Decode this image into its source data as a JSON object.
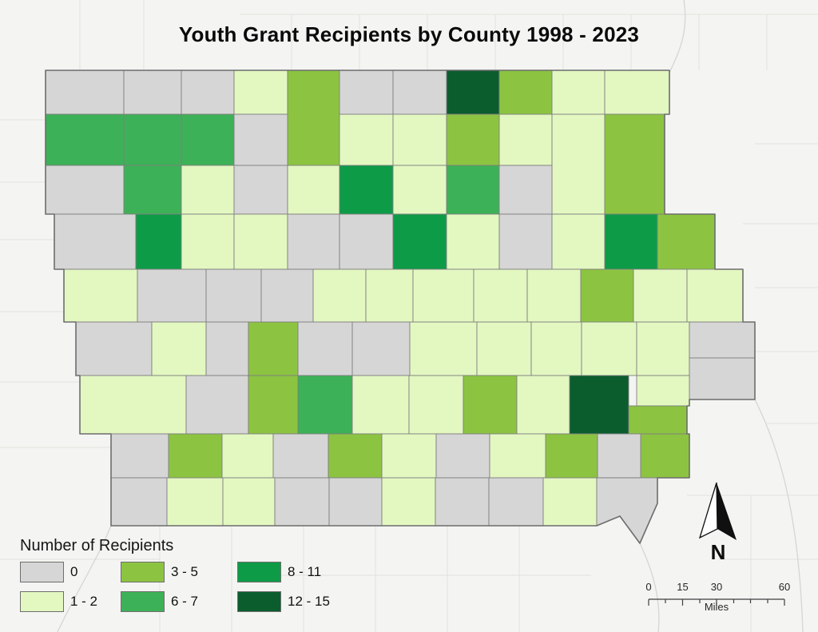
{
  "title": "Youth Grant Recipients by County 1998 - 2023",
  "legend": {
    "title": "Number of Recipients",
    "classes": [
      {
        "label": "0",
        "color": "#d6d6d6"
      },
      {
        "label": "1 - 2",
        "color": "#e3f7c1"
      },
      {
        "label": "3 - 5",
        "color": "#8cc441"
      },
      {
        "label": "6 - 7",
        "color": "#3db157"
      },
      {
        "label": "8 - 11",
        "color": "#0e9b48"
      },
      {
        "label": "12 - 15",
        "color": "#0b5d2e"
      }
    ]
  },
  "scale_bar": {
    "ticks": [
      "0",
      "15",
      "30",
      "60"
    ],
    "units_label": "Miles"
  },
  "north_arrow_label": "N",
  "map": {
    "colors": {
      "county_border": "#7f7f7f",
      "state_border": "#6d6d6d",
      "background": "#f4f4f2",
      "neighbor_line": "#e2e2df",
      "river": "#d5d5d2"
    },
    "counties": [
      {
        "n": "lyon",
        "c": 0,
        "r": [
          57,
          88,
          98,
          55
        ]
      },
      {
        "n": "osceola",
        "c": 0,
        "r": [
          155,
          88,
          72,
          55
        ]
      },
      {
        "n": "dickinson",
        "c": 0,
        "r": [
          227,
          88,
          66,
          55
        ]
      },
      {
        "n": "emmet",
        "c": 1,
        "r": [
          293,
          88,
          67,
          55
        ]
      },
      {
        "n": "kossuth",
        "c": 2,
        "r": [
          360,
          88,
          65,
          119
        ]
      },
      {
        "n": "winnebago",
        "c": 0,
        "r": [
          425,
          88,
          67,
          55
        ]
      },
      {
        "n": "worth",
        "c": 0,
        "r": [
          492,
          88,
          67,
          55
        ]
      },
      {
        "n": "mitchell",
        "c": 5,
        "r": [
          559,
          88,
          66,
          55
        ]
      },
      {
        "n": "howard",
        "c": 2,
        "r": [
          625,
          88,
          66,
          55
        ]
      },
      {
        "n": "winneshiek",
        "c": 1,
        "r": [
          691,
          88,
          66,
          55
        ]
      },
      {
        "n": "allamakee",
        "c": 1,
        "r": [
          757,
          88,
          81,
          55
        ]
      },
      {
        "n": "sioux",
        "c": 3,
        "r": [
          57,
          143,
          98,
          64
        ]
      },
      {
        "n": "obrien",
        "c": 3,
        "r": [
          155,
          143,
          72,
          64
        ]
      },
      {
        "n": "clay",
        "c": 3,
        "r": [
          227,
          143,
          66,
          64
        ]
      },
      {
        "n": "palo-alto",
        "c": 0,
        "r": [
          293,
          143,
          67,
          64
        ]
      },
      {
        "n": "hancock",
        "c": 1,
        "r": [
          425,
          143,
          67,
          64
        ]
      },
      {
        "n": "cerro-gordo",
        "c": 1,
        "r": [
          492,
          143,
          67,
          64
        ]
      },
      {
        "n": "floyd",
        "c": 2,
        "r": [
          559,
          143,
          66,
          64
        ]
      },
      {
        "n": "chickasaw",
        "c": 1,
        "r": [
          625,
          143,
          66,
          64
        ]
      },
      {
        "n": "fayette",
        "c": 1,
        "r": [
          691,
          143,
          66,
          125
        ]
      },
      {
        "n": "clayton",
        "c": 2,
        "r": [
          757,
          143,
          75,
          125
        ]
      },
      {
        "n": "plymouth",
        "c": 0,
        "r": [
          57,
          207,
          98,
          61
        ]
      },
      {
        "n": "cherokee",
        "c": 3,
        "r": [
          155,
          207,
          72,
          61
        ]
      },
      {
        "n": "buena-vista",
        "c": 1,
        "r": [
          227,
          207,
          66,
          61
        ]
      },
      {
        "n": "pocahontas",
        "c": 0,
        "r": [
          293,
          207,
          67,
          61
        ]
      },
      {
        "n": "humboldt",
        "c": 1,
        "r": [
          360,
          207,
          65,
          61
        ]
      },
      {
        "n": "wright",
        "c": 4,
        "r": [
          425,
          207,
          67,
          61
        ]
      },
      {
        "n": "franklin",
        "c": 1,
        "r": [
          492,
          207,
          67,
          61
        ]
      },
      {
        "n": "butler",
        "c": 3,
        "r": [
          559,
          207,
          66,
          61
        ]
      },
      {
        "n": "bremer",
        "c": 0,
        "r": [
          625,
          207,
          66,
          61
        ]
      },
      {
        "n": "woodbury",
        "c": 0,
        "r": [
          68,
          268,
          102,
          69
        ]
      },
      {
        "n": "ida",
        "c": 4,
        "r": [
          170,
          268,
          57,
          69
        ]
      },
      {
        "n": "sac",
        "c": 1,
        "r": [
          227,
          268,
          66,
          69
        ]
      },
      {
        "n": "calhoun",
        "c": 1,
        "r": [
          293,
          268,
          67,
          69
        ]
      },
      {
        "n": "webster",
        "c": 0,
        "r": [
          360,
          268,
          65,
          69
        ]
      },
      {
        "n": "hamilton",
        "c": 0,
        "r": [
          425,
          268,
          67,
          69
        ]
      },
      {
        "n": "hardin",
        "c": 4,
        "r": [
          492,
          268,
          67,
          69
        ]
      },
      {
        "n": "grundy",
        "c": 1,
        "r": [
          559,
          268,
          66,
          69
        ]
      },
      {
        "n": "black-hawk",
        "c": 0,
        "r": [
          625,
          268,
          66,
          69
        ]
      },
      {
        "n": "buchanan",
        "c": 1,
        "r": [
          691,
          268,
          66,
          69
        ]
      },
      {
        "n": "delaware",
        "c": 4,
        "r": [
          757,
          268,
          66,
          69
        ]
      },
      {
        "n": "dubuque",
        "c": 2,
        "r": [
          823,
          268,
          72,
          69
        ]
      },
      {
        "n": "monona",
        "c": 1,
        "r": [
          80,
          337,
          92,
          66
        ]
      },
      {
        "n": "crawford",
        "c": 0,
        "r": [
          172,
          337,
          86,
          66
        ]
      },
      {
        "n": "carroll",
        "c": 0,
        "r": [
          258,
          337,
          69,
          66
        ]
      },
      {
        "n": "greene",
        "c": 0,
        "r": [
          327,
          337,
          65,
          66
        ]
      },
      {
        "n": "boone",
        "c": 1,
        "r": [
          392,
          337,
          66,
          66
        ]
      },
      {
        "n": "story",
        "c": 1,
        "r": [
          458,
          337,
          59,
          66
        ]
      },
      {
        "n": "marshall",
        "c": 1,
        "r": [
          517,
          337,
          76,
          66
        ]
      },
      {
        "n": "tama",
        "c": 1,
        "r": [
          593,
          337,
          67,
          66
        ]
      },
      {
        "n": "benton",
        "c": 1,
        "r": [
          660,
          337,
          67,
          66
        ]
      },
      {
        "n": "linn",
        "c": 2,
        "r": [
          727,
          337,
          66,
          66
        ]
      },
      {
        "n": "jones",
        "c": 1,
        "r": [
          793,
          337,
          67,
          66
        ]
      },
      {
        "n": "jackson",
        "c": 1,
        "r": [
          860,
          337,
          70,
          66
        ]
      },
      {
        "n": "harrison",
        "c": 0,
        "r": [
          95,
          403,
          95,
          67
        ]
      },
      {
        "n": "shelby",
        "c": 1,
        "r": [
          190,
          403,
          68,
          67
        ]
      },
      {
        "n": "audubon",
        "c": 0,
        "r": [
          258,
          403,
          53,
          67
        ]
      },
      {
        "n": "guthrie",
        "c": 2,
        "r": [
          311,
          403,
          62,
          67
        ]
      },
      {
        "n": "dallas",
        "c": 0,
        "r": [
          373,
          403,
          68,
          67
        ]
      },
      {
        "n": "polk",
        "c": 0,
        "r": [
          441,
          403,
          72,
          67
        ]
      },
      {
        "n": "jasper",
        "c": 1,
        "r": [
          513,
          403,
          84,
          67
        ]
      },
      {
        "n": "poweshiek",
        "c": 1,
        "r": [
          597,
          403,
          68,
          67
        ]
      },
      {
        "n": "iowa",
        "c": 1,
        "r": [
          665,
          403,
          63,
          67
        ]
      },
      {
        "n": "johnson",
        "c": 1,
        "r": [
          728,
          403,
          69,
          67
        ]
      },
      {
        "n": "cedar",
        "c": 1,
        "r": [
          797,
          403,
          66,
          67
        ]
      },
      {
        "n": "clinton",
        "c": 0,
        "r": [
          863,
          403,
          82,
          45
        ]
      },
      {
        "n": "scott",
        "c": 0,
        "r": [
          863,
          448,
          82,
          52
        ]
      },
      {
        "n": "muscatine",
        "c": 1,
        "r": [
          797,
          470,
          66,
          38
        ]
      },
      {
        "n": "pottawattamie",
        "c": 1,
        "r": [
          100,
          470,
          133,
          73
        ]
      },
      {
        "n": "cass",
        "c": 0,
        "r": [
          233,
          470,
          78,
          73
        ]
      },
      {
        "n": "adair",
        "c": 2,
        "r": [
          311,
          470,
          62,
          73
        ]
      },
      {
        "n": "madison",
        "c": 3,
        "r": [
          373,
          470,
          68,
          73
        ]
      },
      {
        "n": "warren",
        "c": 1,
        "r": [
          441,
          470,
          71,
          73
        ]
      },
      {
        "n": "marion",
        "c": 1,
        "r": [
          512,
          470,
          68,
          73
        ]
      },
      {
        "n": "mahaska",
        "c": 2,
        "r": [
          580,
          470,
          67,
          73
        ]
      },
      {
        "n": "keokuk",
        "c": 1,
        "r": [
          647,
          470,
          66,
          73
        ]
      },
      {
        "n": "washington",
        "c": 5,
        "r": [
          713,
          470,
          74,
          73
        ]
      },
      {
        "n": "louisa",
        "c": 2,
        "r": [
          787,
          508,
          73,
          35
        ]
      },
      {
        "n": "mills",
        "c": 0,
        "r": [
          139,
          543,
          72,
          55
        ]
      },
      {
        "n": "montgomery",
        "c": 2,
        "r": [
          211,
          543,
          67,
          55
        ]
      },
      {
        "n": "adams",
        "c": 1,
        "r": [
          278,
          543,
          64,
          55
        ]
      },
      {
        "n": "union",
        "c": 0,
        "r": [
          342,
          543,
          69,
          55
        ]
      },
      {
        "n": "clarke",
        "c": 2,
        "r": [
          411,
          543,
          67,
          55
        ]
      },
      {
        "n": "lucas",
        "c": 1,
        "r": [
          478,
          543,
          68,
          55
        ]
      },
      {
        "n": "monroe",
        "c": 0,
        "r": [
          546,
          543,
          67,
          55
        ]
      },
      {
        "n": "wapello",
        "c": 1,
        "r": [
          613,
          543,
          70,
          55
        ]
      },
      {
        "n": "jefferson",
        "c": 2,
        "r": [
          683,
          543,
          65,
          55
        ]
      },
      {
        "n": "henry",
        "c": 0,
        "r": [
          748,
          543,
          54,
          55
        ]
      },
      {
        "n": "des-moines",
        "c": 2,
        "r": [
          802,
          543,
          61,
          55
        ]
      },
      {
        "n": "fremont",
        "c": 0,
        "r": [
          139,
          598,
          70,
          60
        ]
      },
      {
        "n": "page",
        "c": 1,
        "r": [
          209,
          598,
          70,
          60
        ]
      },
      {
        "n": "taylor",
        "c": 1,
        "r": [
          279,
          598,
          65,
          60
        ]
      },
      {
        "n": "ringgold",
        "c": 0,
        "r": [
          344,
          598,
          68,
          60
        ]
      },
      {
        "n": "decatur",
        "c": 0,
        "r": [
          412,
          598,
          66,
          60
        ]
      },
      {
        "n": "wayne",
        "c": 1,
        "r": [
          478,
          598,
          67,
          60
        ]
      },
      {
        "n": "appanoose",
        "c": 0,
        "r": [
          545,
          598,
          67,
          60
        ]
      },
      {
        "n": "davis",
        "c": 0,
        "r": [
          612,
          598,
          68,
          60
        ]
      },
      {
        "n": "van-buren",
        "c": 1,
        "r": [
          680,
          598,
          67,
          60
        ]
      },
      {
        "n": "lee",
        "c": 0,
        "p": "747,598 823,598 823,630 801,680 776,646 747,658"
      }
    ]
  }
}
